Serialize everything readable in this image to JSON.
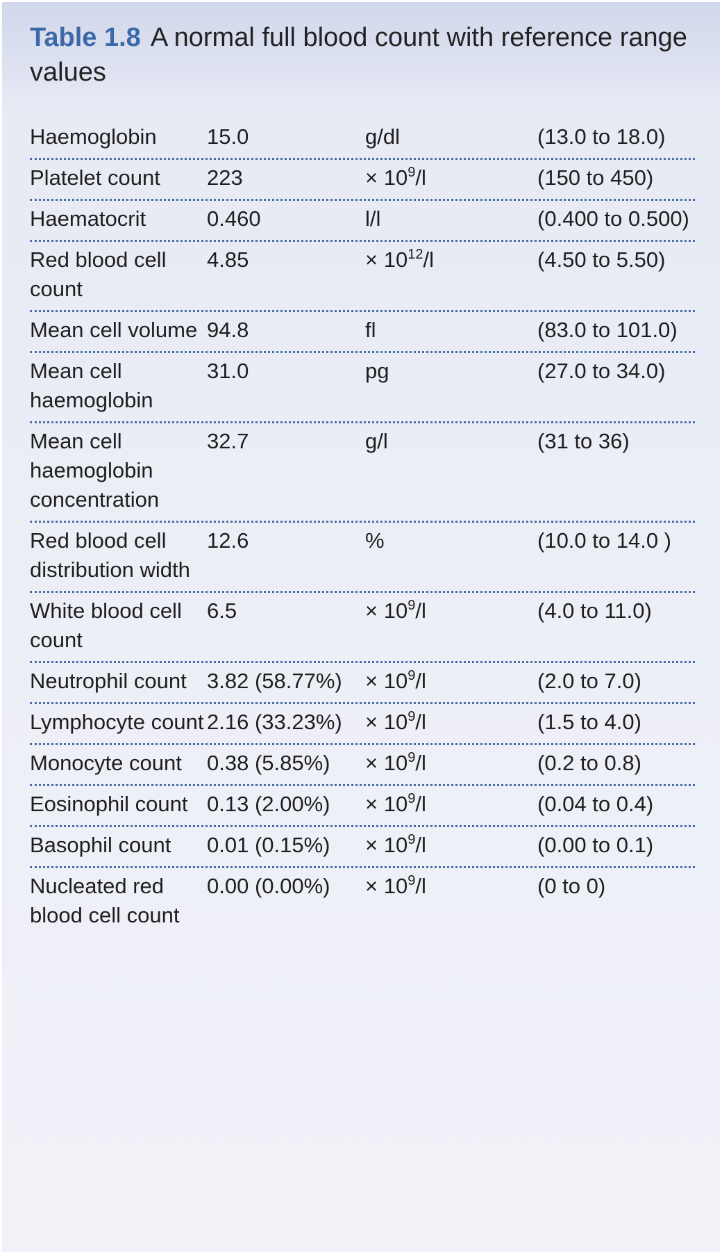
{
  "caption": {
    "label": "Table 1.8",
    "text": "A normal full blood count with reference range values"
  },
  "rows": [
    {
      "name": "Haemoglobin",
      "value": "15.0",
      "unit_base": "g/dl",
      "unit_exp": "",
      "unit_tail": "",
      "range": "(13.0 to 18.0)"
    },
    {
      "name": "Platelet count",
      "value": "223",
      "unit_base": "× 10",
      "unit_exp": "9",
      "unit_tail": "/l",
      "range": "(150 to 450)"
    },
    {
      "name": "Haematocrit",
      "value": "0.460",
      "unit_base": "l/l",
      "unit_exp": "",
      "unit_tail": "",
      "range": "(0.400 to 0.500)"
    },
    {
      "name": "Red blood cell count",
      "value": "4.85",
      "unit_base": "× 10",
      "unit_exp": "12",
      "unit_tail": "/l",
      "range": "(4.50 to 5.50)"
    },
    {
      "name": "Mean cell volume",
      "value": "94.8",
      "unit_base": "fl",
      "unit_exp": "",
      "unit_tail": "",
      "range": "(83.0 to 101.0)"
    },
    {
      "name": "Mean cell haemoglobin",
      "value": "31.0",
      "unit_base": "pg",
      "unit_exp": "",
      "unit_tail": "",
      "range": "(27.0 to 34.0)"
    },
    {
      "name": "Mean cell haemoglobin concentration",
      "value": "32.7",
      "unit_base": "g/l",
      "unit_exp": "",
      "unit_tail": "",
      "range": "(31 to 36)"
    },
    {
      "name": "Red blood cell distribution width",
      "value": "12.6",
      "unit_base": "%",
      "unit_exp": "",
      "unit_tail": "",
      "range": "(10.0 to 14.0 )"
    },
    {
      "name": "White blood cell count",
      "value": "6.5",
      "unit_base": "× 10",
      "unit_exp": "9",
      "unit_tail": "/l",
      "range": "(4.0 to 11.0)"
    },
    {
      "name": "Neutrophil count",
      "value": "3.82 (58.77%)",
      "unit_base": "× 10",
      "unit_exp": "9",
      "unit_tail": "/l",
      "range": "(2.0 to 7.0)"
    },
    {
      "name": "Lymphocyte count",
      "value": "2.16 (33.23%)",
      "unit_base": "× 10",
      "unit_exp": "9",
      "unit_tail": "/l",
      "range": "(1.5 to 4.0)"
    },
    {
      "name": "Monocyte count",
      "value": "0.38 (5.85%)",
      "unit_base": "× 10",
      "unit_exp": "9",
      "unit_tail": "/l",
      "range": "(0.2 to 0.8)"
    },
    {
      "name": "Eosinophil count",
      "value": "0.13 (2.00%)",
      "unit_base": "× 10",
      "unit_exp": "9",
      "unit_tail": "/l",
      "range": "(0.04 to 0.4)"
    },
    {
      "name": "Basophil count",
      "value": "0.01 (0.15%)",
      "unit_base": "× 10",
      "unit_exp": "9",
      "unit_tail": "/l",
      "range": "(0.00 to 0.1)"
    },
    {
      "name": "Nucleated red blood cell count",
      "value": "0.00 (0.00%)",
      "unit_base": "× 10",
      "unit_exp": "9",
      "unit_tail": "/l",
      "range": "(0 to 0)"
    }
  ],
  "colors": {
    "caption_label": "#3c6aa9",
    "divider": "#4a6ea8",
    "header_bg": "#d1d8ec",
    "body_bg": "#eceef6"
  }
}
